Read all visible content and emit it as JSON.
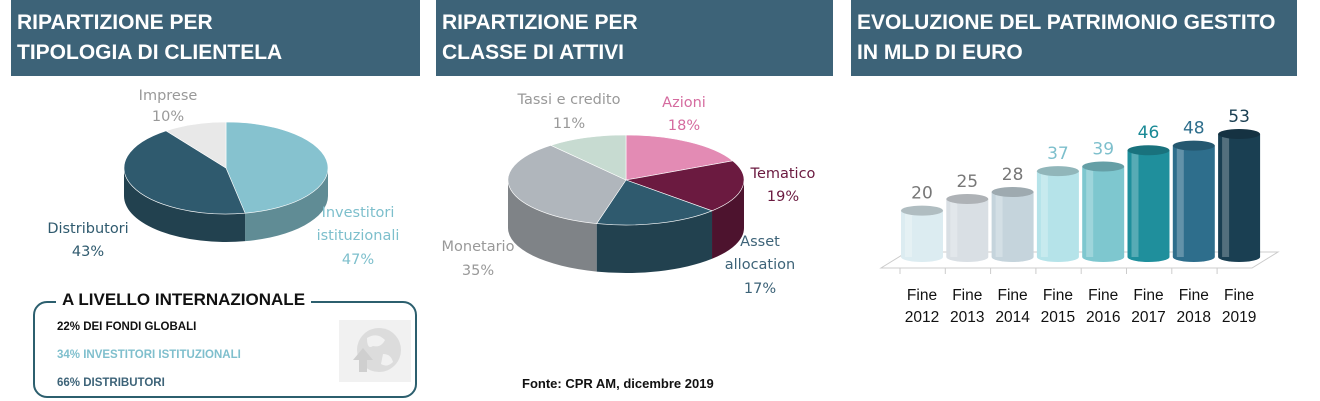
{
  "headers": {
    "clientela": [
      "RIPARTIZIONE PER",
      "TIPOLOGIA DI CLIENTELA"
    ],
    "attivi": [
      "RIPARTIZIONE PER",
      "CLASSE DI ATTIVI"
    ],
    "patrimonio": [
      "EVOLUZIONE DEL PATRIMONIO GESTITO",
      "IN MLD DI EURO"
    ]
  },
  "international": {
    "title": "A LIVELLO INTERNAZIONALE",
    "lines": [
      "22% DEI FONDI GLOBALI",
      "34% INVESTITORI ISTITUZIONALI",
      "66% DISTRIBUTORI"
    ],
    "icon": "globe-upload-icon"
  },
  "source": "Fonte: CPR AM, dicembre 2019",
  "colors": {
    "header_bg": "#3d6378",
    "distributori": "#2f5a6e",
    "investitori": "#86c2cf",
    "imprese": "#e8e8e8",
    "azioni": "#e38bb4",
    "tematico": "#6b1a40",
    "asset_allocation": "#2f5a6e",
    "monetario": "#b0b6bc",
    "tassi": "#c7dbd1"
  },
  "chart_data": [
    {
      "type": "pie",
      "title": "RIPARTIZIONE PER TIPOLOGIA DI CLIENTELA",
      "slices": [
        {
          "label": "Investitori istituzionali",
          "value": 47,
          "value_label": "47%"
        },
        {
          "label": "Distributori",
          "value": 43,
          "value_label": "43%"
        },
        {
          "label": "Imprese",
          "value": 10,
          "value_label": "10%"
        }
      ]
    },
    {
      "type": "pie",
      "title": "RIPARTIZIONE PER CLASSE DI ATTIVI",
      "slices": [
        {
          "label": "Azioni",
          "value": 18,
          "value_label": "18%"
        },
        {
          "label": "Tematico",
          "value": 19,
          "value_label": "19%"
        },
        {
          "label": "Asset allocation",
          "value": 17,
          "value_label": "17%"
        },
        {
          "label": "Monetario",
          "value": 35,
          "value_label": "35%"
        },
        {
          "label": "Tassi e credito",
          "value": 11,
          "value_label": "11%"
        }
      ]
    },
    {
      "type": "bar",
      "title": "EVOLUZIONE DEL PATRIMONIO GESTITO IN MLD DI EURO",
      "categories": [
        "Fine 2012",
        "Fine 2013",
        "Fine 2014",
        "Fine 2015",
        "Fine 2016",
        "Fine 2017",
        "Fine 2018",
        "Fine 2019"
      ],
      "category_lines": [
        [
          "Fine",
          "2012"
        ],
        [
          "Fine",
          "2013"
        ],
        [
          "Fine",
          "2014"
        ],
        [
          "Fine",
          "2015"
        ],
        [
          "Fine",
          "2016"
        ],
        [
          "Fine",
          "2017"
        ],
        [
          "Fine",
          "2018"
        ],
        [
          "Fine",
          "2019"
        ]
      ],
      "values": [
        20,
        25,
        28,
        37,
        39,
        46,
        48,
        53
      ],
      "value_labels": [
        "20",
        "25",
        "28",
        "37",
        "39",
        "46",
        "48",
        "53"
      ],
      "colors": [
        "#dcecf1",
        "#d9dfe4",
        "#c5d4dc",
        "#b5e3e9",
        "#7ec7cf",
        "#1f8f9c",
        "#2e6e8c",
        "#1a3f52"
      ],
      "label_colors": [
        "#777777",
        "#777777",
        "#777777",
        "#7dbfcc",
        "#7dbfcc",
        "#1a8a96",
        "#2e6e8c",
        "#1a3f52"
      ],
      "ylim": [
        0,
        55
      ]
    }
  ]
}
